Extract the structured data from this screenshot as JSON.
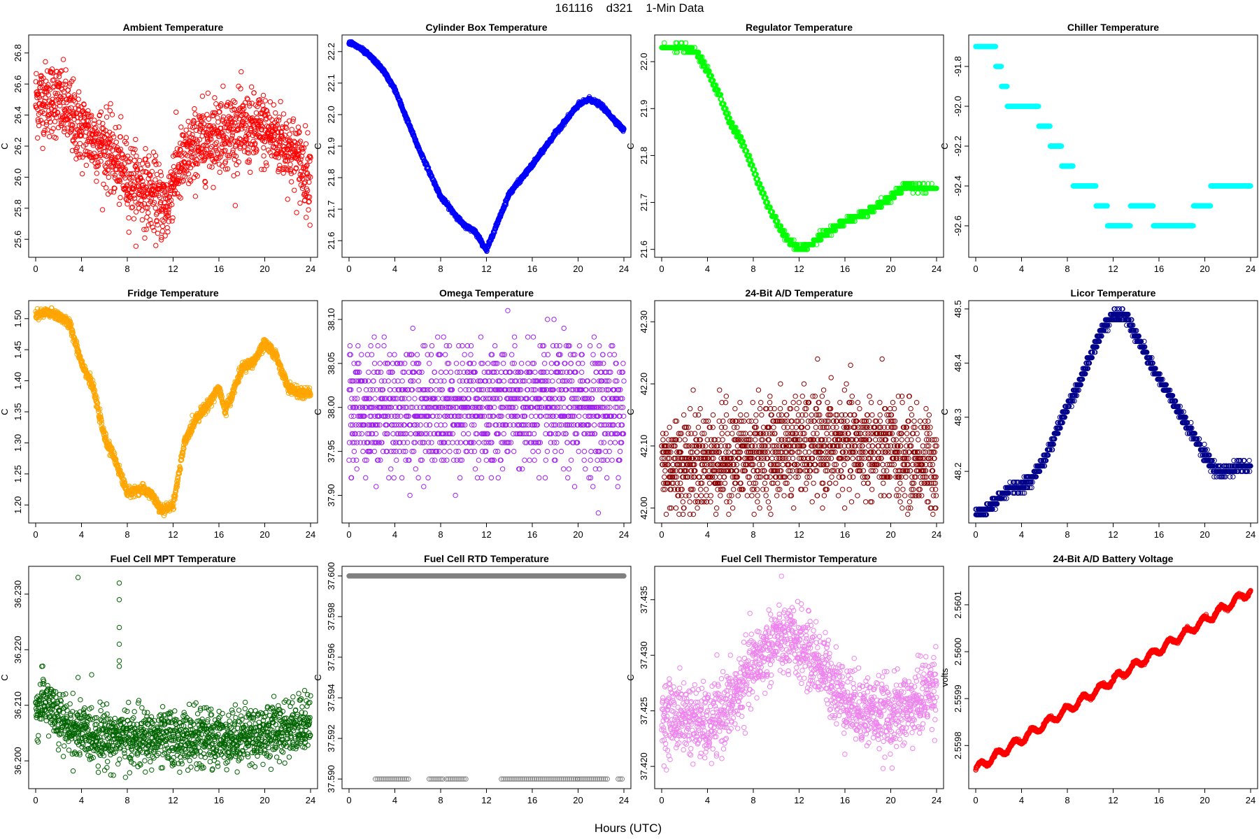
{
  "figure": {
    "suptitle": "161116    d321    1-Min Data",
    "xlabel": "Hours (UTC)"
  },
  "chart_data": [
    {
      "type": "scatter",
      "title": "Ambient Temperature",
      "ylabel": "C",
      "color": "#ff0000",
      "marker": "circle-open",
      "xlim": [
        0,
        24
      ],
      "ylim": [
        25.52,
        26.88
      ],
      "yticks": [
        "25.6",
        "25.8",
        "26.0",
        "26.2",
        "26.4",
        "26.6",
        "26.8"
      ],
      "x": [
        0,
        2,
        4,
        6,
        8,
        10,
        11.5,
        12,
        14,
        16,
        18,
        20,
        22,
        24
      ],
      "y": [
        26.5,
        26.5,
        26.3,
        26.2,
        26.0,
        25.9,
        25.8,
        26.0,
        26.2,
        26.3,
        26.3,
        26.3,
        26.2,
        26.0
      ],
      "noise": 0.12
    },
    {
      "type": "scatter",
      "title": "Cylinder Box Temperature",
      "ylabel": "C",
      "color": "#0000ff",
      "marker": "circle-open",
      "xlim": [
        0,
        24
      ],
      "ylim": [
        21.565,
        22.235
      ],
      "yticks": [
        "21.6",
        "21.7",
        "21.8",
        "21.9",
        "22.0",
        "22.1",
        "22.2"
      ],
      "x": [
        0,
        1,
        2,
        3,
        4,
        6,
        8,
        10,
        11,
        12,
        13,
        14,
        16,
        18,
        20,
        21,
        22,
        24
      ],
      "y": [
        22.23,
        22.21,
        22.18,
        22.14,
        22.08,
        21.9,
        21.74,
        21.65,
        21.63,
        21.57,
        21.66,
        21.75,
        21.84,
        21.94,
        22.03,
        22.05,
        22.03,
        21.95
      ],
      "noise": 0.003
    },
    {
      "type": "scatter",
      "title": "Regulator Temperature",
      "ylabel": "C",
      "color": "#00ff00",
      "marker": "circle-open",
      "xlim": [
        0,
        24
      ],
      "ylim": [
        21.595,
        22.045
      ],
      "yticks": [
        "21.6",
        "21.7",
        "21.8",
        "21.9",
        "22.0"
      ],
      "x": [
        0,
        1,
        2,
        3,
        4,
        5,
        6,
        7,
        8,
        9,
        10,
        11,
        12,
        13,
        14,
        16,
        18,
        20,
        21,
        21.5,
        22,
        24
      ],
      "y": [
        22.03,
        22.03,
        22.03,
        22.02,
        21.98,
        21.93,
        21.87,
        21.83,
        21.77,
        21.71,
        21.66,
        21.62,
        21.6,
        21.61,
        21.63,
        21.66,
        21.68,
        21.71,
        21.73,
        21.74,
        21.73,
        21.73
      ],
      "noise": 0.003,
      "step": 0.01
    },
    {
      "type": "scatter",
      "title": "Chiller Temperature",
      "ylabel": "C",
      "color": "#00ffff",
      "marker": "circle-open",
      "xlim": [
        0,
        24
      ],
      "ylim": [
        -92.73,
        -91.67
      ],
      "yticks": [
        "-92.6",
        "-92.4",
        "-92.2",
        "-92.0",
        "-91.8"
      ],
      "x": [
        0,
        1.5,
        2,
        2.5,
        3,
        4,
        5,
        6,
        7,
        8,
        9,
        10,
        11,
        12,
        13,
        14,
        15,
        16,
        18,
        20,
        21,
        24
      ],
      "y": [
        -91.7,
        -91.7,
        -91.8,
        -91.9,
        -92.0,
        -92.0,
        -92.0,
        -92.1,
        -92.2,
        -92.3,
        -92.4,
        -92.4,
        -92.5,
        -92.6,
        -92.6,
        -92.5,
        -92.5,
        -92.6,
        -92.6,
        -92.5,
        -92.4,
        -92.4
      ],
      "noise": 0.0,
      "step": 0.1
    },
    {
      "type": "scatter",
      "title": "Fridge Temperature",
      "ylabel": "C",
      "color": "#ffa500",
      "marker": "circle-open",
      "xlim": [
        0,
        24
      ],
      "ylim": [
        1.18,
        1.52
      ],
      "yticks": [
        "1.20",
        "1.25",
        "1.30",
        "1.35",
        "1.40",
        "1.45",
        "1.50"
      ],
      "x": [
        0,
        1,
        2,
        3,
        4,
        5,
        6,
        7,
        8,
        9,
        10,
        11,
        12,
        13,
        14,
        15,
        16,
        16.5,
        17,
        18,
        19,
        20,
        21,
        22,
        23,
        24
      ],
      "y": [
        1.505,
        1.51,
        1.505,
        1.49,
        1.43,
        1.39,
        1.31,
        1.27,
        1.22,
        1.225,
        1.22,
        1.19,
        1.2,
        1.3,
        1.34,
        1.36,
        1.39,
        1.35,
        1.37,
        1.42,
        1.43,
        1.46,
        1.44,
        1.39,
        1.38,
        1.38
      ],
      "noise": 0.004
    },
    {
      "type": "scatter",
      "title": "Omega Temperature",
      "ylabel": "C",
      "color": "#a020f0",
      "marker": "circle-open",
      "xlim": [
        0,
        24
      ],
      "ylim": [
        37.875,
        38.115
      ],
      "yticks": [
        "37.90",
        "37.95",
        "38.00",
        "38.05",
        "38.10"
      ],
      "x": [
        0,
        24
      ],
      "y": [
        38.0,
        38.0
      ],
      "noise": 0.035,
      "step": 0.01
    },
    {
      "type": "scatter",
      "title": "24-Bit A/D Temperature",
      "ylabel": "C",
      "color": "#8b0000",
      "marker": "circle-open",
      "xlim": [
        0,
        24
      ],
      "ylim": [
        41.985,
        42.325
      ],
      "yticks": [
        "42.00",
        "42.10",
        "42.20",
        "42.30"
      ],
      "x": [
        0,
        6,
        12,
        18,
        24
      ],
      "y": [
        42.07,
        42.08,
        42.1,
        42.1,
        42.07
      ],
      "noise": 0.04,
      "step": 0.01
    },
    {
      "type": "scatter",
      "title": "Licor Temperature",
      "ylabel": "C",
      "color": "#00008b",
      "marker": "circle-open",
      "xlim": [
        0,
        24
      ],
      "ylim": [
        48.115,
        48.505
      ],
      "yticks": [
        "48.2",
        "48.3",
        "48.4",
        "48.5"
      ],
      "x": [
        0,
        1,
        2,
        3,
        4,
        5,
        6,
        7,
        8,
        9,
        10,
        11,
        12,
        13,
        14,
        15,
        16,
        17,
        18,
        19,
        20,
        21,
        22,
        23,
        24
      ],
      "y": [
        48.12,
        48.13,
        48.15,
        48.17,
        48.17,
        48.19,
        48.22,
        48.27,
        48.32,
        48.36,
        48.41,
        48.46,
        48.49,
        48.49,
        48.45,
        48.41,
        48.37,
        48.34,
        48.3,
        48.27,
        48.23,
        48.2,
        48.2,
        48.21,
        48.21
      ],
      "noise": 0.005,
      "step": 0.01
    },
    {
      "type": "scatter",
      "title": "Fuel Cell MPT Temperature",
      "ylabel": "C",
      "color": "#006400",
      "marker": "circle-open",
      "xlim": [
        0,
        24
      ],
      "ylim": [
        36.196,
        36.234
      ],
      "yticks": [
        "36.200",
        "36.210",
        "36.220",
        "36.230"
      ],
      "x": [
        0,
        1,
        2,
        4,
        8,
        12,
        16,
        20,
        22,
        24
      ],
      "y": [
        36.209,
        36.211,
        36.207,
        36.205,
        36.204,
        36.204,
        36.204,
        36.205,
        36.206,
        36.207
      ],
      "noise": 0.0025,
      "outliers": [
        [
          3.7,
          36.233
        ],
        [
          3.7,
          36.215
        ],
        [
          7.3,
          36.232
        ],
        [
          7.3,
          36.229
        ],
        [
          7.3,
          36.224
        ],
        [
          7.3,
          36.221
        ],
        [
          7.3,
          36.218
        ],
        [
          7.3,
          36.217
        ]
      ]
    },
    {
      "type": "scatter",
      "title": "Fuel Cell RTD Temperature",
      "ylabel": "C",
      "color": "#808080",
      "marker": "circle-open",
      "xlim": [
        0,
        24
      ],
      "ylim": [
        37.5898,
        37.6002
      ],
      "yticks": [
        "37.590",
        "37.592",
        "37.594",
        "37.596",
        "37.598",
        "37.600"
      ],
      "x": [
        0,
        24
      ],
      "y": [
        37.6,
        37.6
      ],
      "noise": 0.0,
      "low_value": 37.59,
      "low_ranges": [
        [
          2.3,
          5.3
        ],
        [
          7,
          8.2
        ],
        [
          8.5,
          10.3
        ],
        [
          13.3,
          20
        ],
        [
          20,
          22.6
        ],
        [
          23.5,
          24
        ]
      ]
    },
    {
      "type": "scatter",
      "title": "Fuel Cell Thermistor Temperature",
      "ylabel": "C",
      "color": "#ee82ee",
      "marker": "circle-open",
      "xlim": [
        0,
        24
      ],
      "ylim": [
        37.4185,
        37.4375
      ],
      "yticks": [
        "37.420",
        "37.425",
        "37.430",
        "37.435"
      ],
      "x": [
        0,
        2,
        4,
        6,
        8,
        10,
        12,
        14,
        16,
        18,
        20,
        22,
        24
      ],
      "y": [
        37.4245,
        37.4245,
        37.4235,
        37.4255,
        37.429,
        37.4315,
        37.431,
        37.429,
        37.426,
        37.425,
        37.4245,
        37.4255,
        37.4275
      ],
      "noise": 0.0016
    },
    {
      "type": "scatter",
      "title": "24-Bit A/D Battery Voltage",
      "ylabel": "volts",
      "color": "#ff0000",
      "marker": "circle-open",
      "xlim": [
        0,
        24
      ],
      "ylim": [
        2.55972,
        2.56017
      ],
      "yticks": [
        "2.5598",
        "2.5599",
        "2.5600",
        "2.5601"
      ],
      "x": [
        0,
        24
      ],
      "y": [
        2.55975,
        2.56013
      ],
      "noise": 1.5e-06,
      "wave": 8e-06
    }
  ],
  "xticks": [
    "0",
    "4",
    "8",
    "12",
    "16",
    "20",
    "24"
  ]
}
